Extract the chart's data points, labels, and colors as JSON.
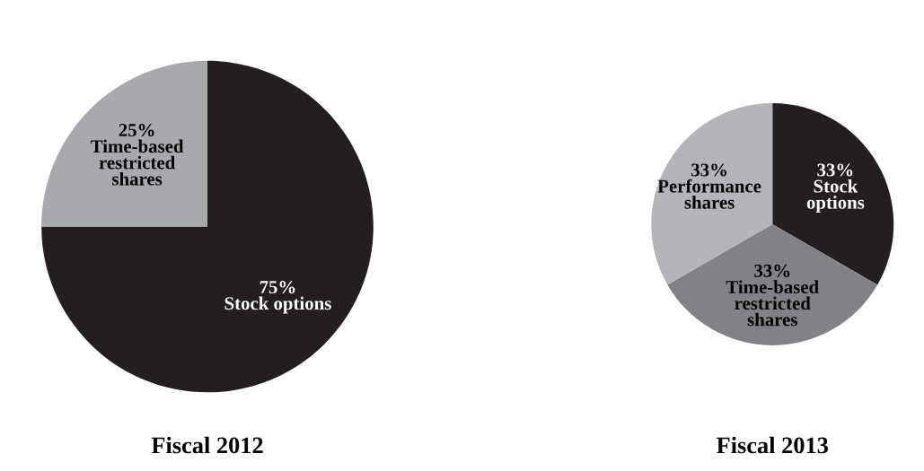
{
  "chart_data": [
    {
      "type": "pie",
      "title": "Fiscal 2012",
      "categories": [
        "Stock options",
        "Time-based\nrestricted\nshares"
      ],
      "values": [
        75,
        25
      ],
      "value_labels": [
        "75%",
        "25%"
      ],
      "colors": [
        "#231f20",
        "#a7a9ac"
      ]
    },
    {
      "type": "pie",
      "title": "Fiscal 2013",
      "categories": [
        "Stock\noptions",
        "Time-based\nrestricted\nshares",
        "Performance\nshares"
      ],
      "values": [
        33,
        33,
        33
      ],
      "value_labels": [
        "33%",
        "33%",
        "33%"
      ],
      "colors": [
        "#231f20",
        "#808285",
        "#b3b5b8"
      ]
    }
  ]
}
